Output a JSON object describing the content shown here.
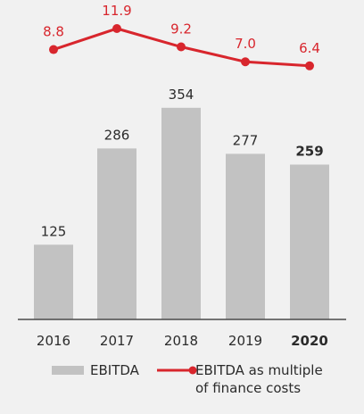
{
  "chart_data": [
    {
      "type": "bar",
      "categories": [
        "2016",
        "2017",
        "2018",
        "2019",
        "2020"
      ],
      "series": [
        {
          "name": "EBITDA",
          "values": [
            125,
            286,
            354,
            277,
            259
          ]
        }
      ],
      "highlight_category": "2020",
      "colors": {
        "bar": "#c2c2c2",
        "axis": "#4a4a4a",
        "text": "#2b2b2b"
      }
    },
    {
      "type": "line",
      "categories": [
        "2016",
        "2017",
        "2018",
        "2019",
        "2020"
      ],
      "series": [
        {
          "name": "EBITDA as multiple of finance costs",
          "values": [
            8.8,
            11.9,
            9.2,
            7.0,
            6.4
          ]
        }
      ],
      "value_labels": [
        "8.8",
        "11.9",
        "9.2",
        "7.0",
        "6.4"
      ],
      "colors": {
        "line": "#d8262d"
      }
    }
  ],
  "legend": {
    "bar_label": "EBITDA",
    "line_label_line1": "EBITDA as multiple",
    "line_label_line2": "of finance costs"
  }
}
